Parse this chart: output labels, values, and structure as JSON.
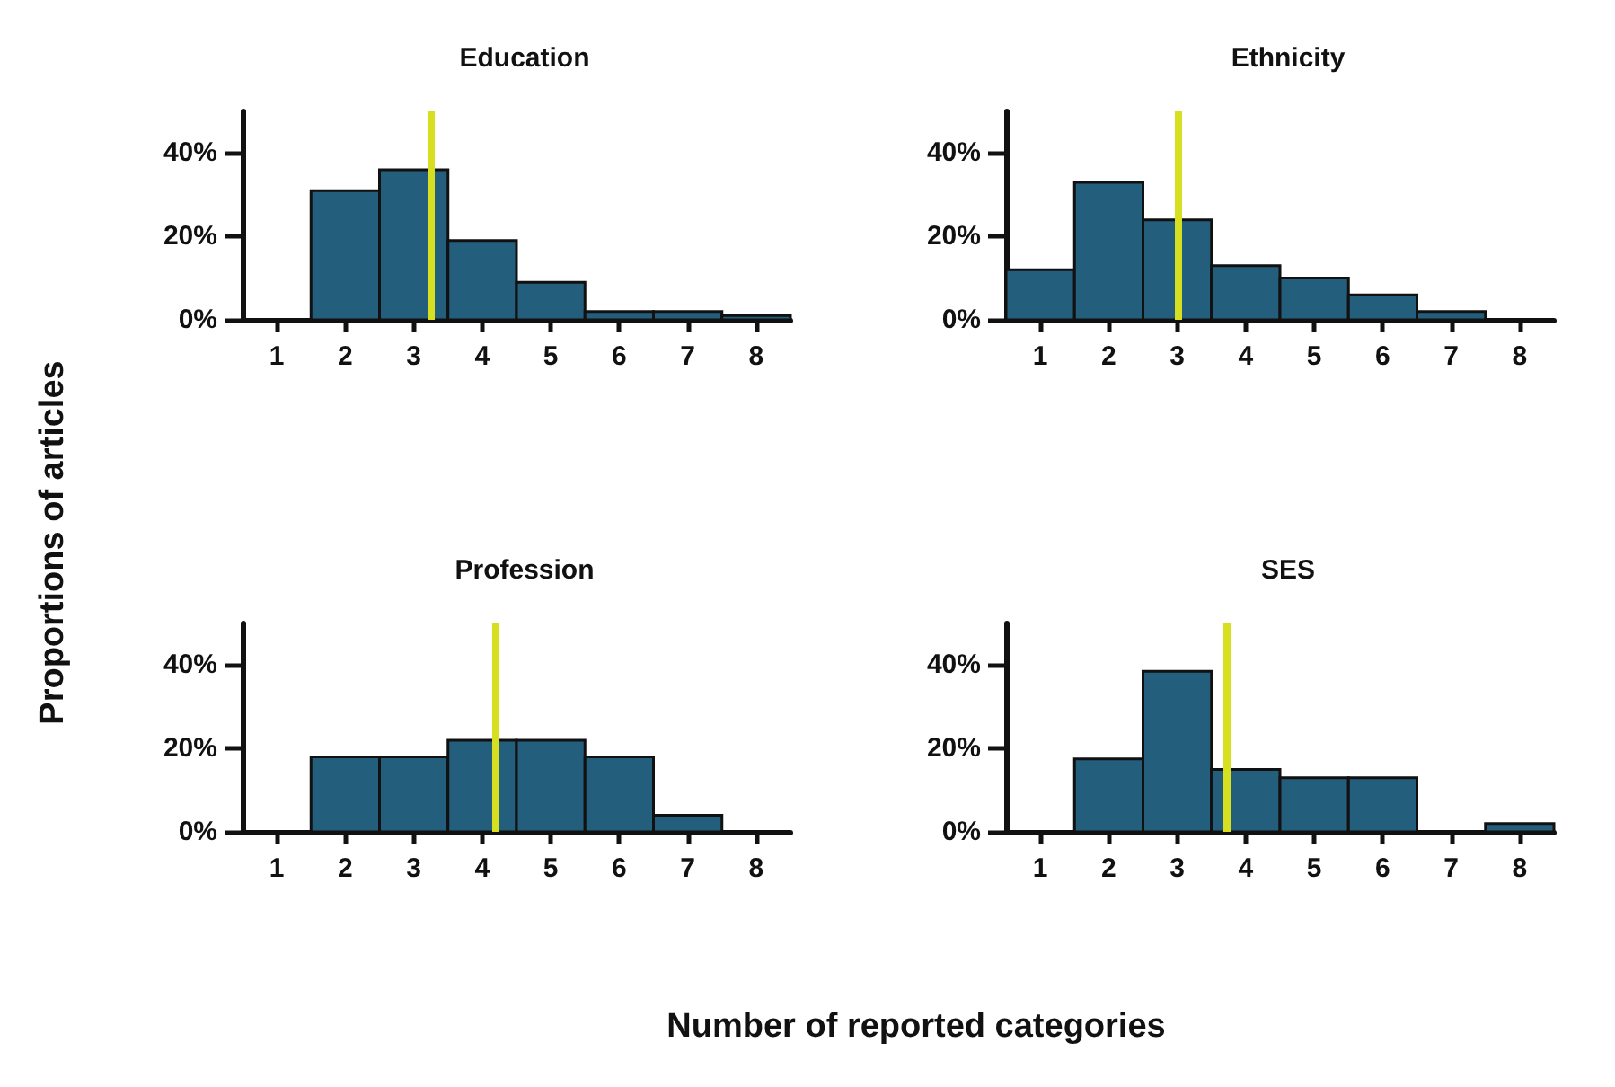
{
  "chart_data": [
    {
      "type": "histogram",
      "title": "Education",
      "ylabel": "Proportions of articles",
      "bins": [
        0.5,
        1.5,
        2.5,
        3.5,
        4.5,
        5.5,
        6.5,
        7.5,
        8.5
      ],
      "values": [
        0,
        31,
        36,
        19,
        9,
        2,
        2,
        1
      ],
      "color": "#245e7d",
      "xlim": [
        0.5,
        8.5
      ],
      "xticks": [
        1,
        2,
        3,
        4,
        5,
        6,
        7,
        8
      ],
      "ylim": [
        0,
        50
      ],
      "yticks": [
        {
          "value": 0,
          "label": "0%"
        },
        {
          "value": 20,
          "label": "20%"
        },
        {
          "value": 40,
          "label": "40%"
        }
      ],
      "ref_lines": [
        {
          "axis": "x",
          "value": 3.25,
          "color": "#d6e020"
        }
      ],
      "grid": false
    },
    {
      "type": "histogram",
      "title": "Ethnicity",
      "bins": [
        0.5,
        1.5,
        2.5,
        3.5,
        4.5,
        5.5,
        6.5,
        7.5,
        8.5
      ],
      "values": [
        12,
        33,
        24,
        13,
        10,
        6,
        2,
        0
      ],
      "color": "#245e7d",
      "xlim": [
        0.5,
        8.5
      ],
      "xticks": [
        1,
        2,
        3,
        4,
        5,
        6,
        7,
        8
      ],
      "ylim": [
        0,
        50
      ],
      "yticks": [
        {
          "value": 0,
          "label": "0%"
        },
        {
          "value": 20,
          "label": "20%"
        },
        {
          "value": 40,
          "label": "40%"
        }
      ],
      "ref_lines": [
        {
          "axis": "x",
          "value": 3.0,
          "color": "#d6e020"
        }
      ],
      "grid": false
    },
    {
      "type": "histogram",
      "title": "Profession",
      "xlabel": "Number of reported categories",
      "bins": [
        0.5,
        1.5,
        2.5,
        3.5,
        4.5,
        5.5,
        6.5,
        7.5,
        8.5
      ],
      "values": [
        0,
        18,
        18,
        22,
        22,
        18,
        4,
        0
      ],
      "color": "#245e7d",
      "xlim": [
        0.5,
        8.5
      ],
      "xticks": [
        1,
        2,
        3,
        4,
        5,
        6,
        7,
        8
      ],
      "ylim": [
        0,
        50
      ],
      "yticks": [
        {
          "value": 0,
          "label": "0%"
        },
        {
          "value": 20,
          "label": "20%"
        },
        {
          "value": 40,
          "label": "40%"
        }
      ],
      "ref_lines": [
        {
          "axis": "x",
          "value": 4.18,
          "color": "#d6e020"
        }
      ],
      "grid": false
    },
    {
      "type": "histogram",
      "title": "SES",
      "bins": [
        0.5,
        1.5,
        2.5,
        3.5,
        4.5,
        5.5,
        6.5,
        7.5,
        8.5
      ],
      "values": [
        0,
        17.5,
        38.5,
        15,
        13,
        13,
        0,
        2
      ],
      "color": "#245e7d",
      "xlim": [
        0.5,
        8.5
      ],
      "xticks": [
        1,
        2,
        3,
        4,
        5,
        6,
        7,
        8
      ],
      "ylim": [
        0,
        50
      ],
      "yticks": [
        {
          "value": 0,
          "label": "0%"
        },
        {
          "value": 20,
          "label": "20%"
        },
        {
          "value": 40,
          "label": "40%"
        }
      ],
      "ref_lines": [
        {
          "axis": "x",
          "value": 3.73,
          "color": "#d6e020"
        }
      ],
      "grid": false
    }
  ]
}
